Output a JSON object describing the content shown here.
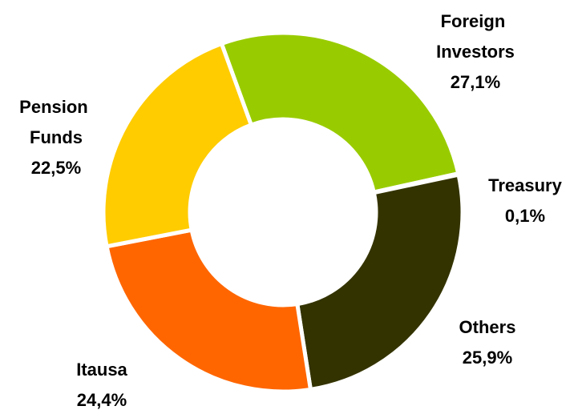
{
  "chart_data": {
    "type": "donut",
    "categories": [
      "Foreign Investors",
      "Treasury",
      "Others",
      "Itausa",
      "Pension Funds"
    ],
    "values": [
      27.1,
      0.1,
      25.9,
      24.4,
      22.5
    ],
    "value_labels": [
      "27,1%",
      "0,1%",
      "25,9%",
      "24,4%",
      "22,5%"
    ],
    "colors": [
      "#99cc00",
      "#808080",
      "#333300",
      "#ff6600",
      "#ffcc00"
    ]
  }
}
